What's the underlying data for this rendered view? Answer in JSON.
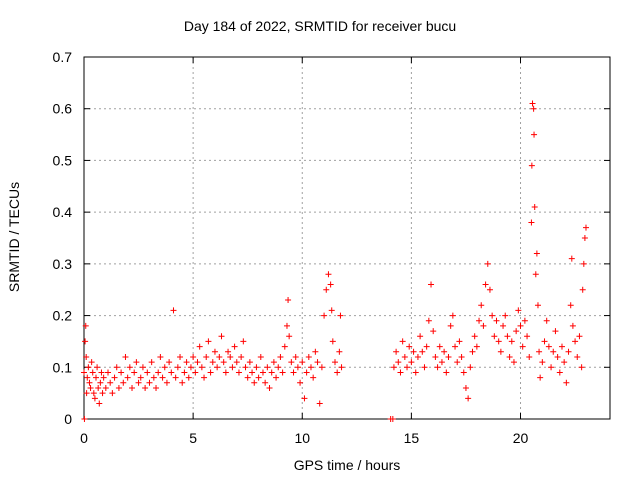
{
  "chart_data": {
    "type": "scatter",
    "title": "Day 184 of 2022, SRMTID for receiver bucu",
    "xlabel": "GPS time / hours",
    "ylabel": "SRMTID / TECUs",
    "xlim": [
      0,
      24.1
    ],
    "ylim": [
      0,
      0.7
    ],
    "xticks": [
      0,
      5,
      10,
      15,
      20
    ],
    "xtick_labels": [
      "0",
      "5",
      "10",
      "15",
      "20"
    ],
    "yticks": [
      0,
      0.1,
      0.2,
      0.3,
      0.4,
      0.5,
      0.6,
      0.7
    ],
    "ytick_labels": [
      "0",
      "0.1",
      "0.2",
      "0.3",
      "0.4",
      "0.5",
      "0.6",
      "0.7"
    ],
    "grid": true,
    "marker": "+",
    "color": "#ff0000",
    "series": [
      {
        "name": "SRMTID",
        "points": [
          [
            0.0,
            0.09
          ],
          [
            0.02,
            0.0
          ],
          [
            0.05,
            0.15
          ],
          [
            0.08,
            0.18
          ],
          [
            0.1,
            0.12
          ],
          [
            0.12,
            0.05
          ],
          [
            0.15,
            0.08
          ],
          [
            0.2,
            0.1
          ],
          [
            0.25,
            0.07
          ],
          [
            0.3,
            0.06
          ],
          [
            0.35,
            0.11
          ],
          [
            0.4,
            0.09
          ],
          [
            0.45,
            0.05
          ],
          [
            0.5,
            0.04
          ],
          [
            0.55,
            0.08
          ],
          [
            0.6,
            0.1
          ],
          [
            0.65,
            0.06
          ],
          [
            0.7,
            0.03
          ],
          [
            0.75,
            0.07
          ],
          [
            0.8,
            0.09
          ],
          [
            0.85,
            0.05
          ],
          [
            0.9,
            0.08
          ],
          [
            1.0,
            0.06
          ],
          [
            1.1,
            0.09
          ],
          [
            1.2,
            0.07
          ],
          [
            1.3,
            0.05
          ],
          [
            1.4,
            0.08
          ],
          [
            1.5,
            0.1
          ],
          [
            1.6,
            0.06
          ],
          [
            1.7,
            0.09
          ],
          [
            1.8,
            0.07
          ],
          [
            1.9,
            0.12
          ],
          [
            2.0,
            0.08
          ],
          [
            2.1,
            0.1
          ],
          [
            2.2,
            0.06
          ],
          [
            2.3,
            0.09
          ],
          [
            2.4,
            0.11
          ],
          [
            2.5,
            0.07
          ],
          [
            2.6,
            0.08
          ],
          [
            2.7,
            0.1
          ],
          [
            2.8,
            0.06
          ],
          [
            2.9,
            0.09
          ],
          [
            3.0,
            0.07
          ],
          [
            3.1,
            0.11
          ],
          [
            3.2,
            0.08
          ],
          [
            3.3,
            0.06
          ],
          [
            3.4,
            0.09
          ],
          [
            3.5,
            0.12
          ],
          [
            3.6,
            0.08
          ],
          [
            3.7,
            0.1
          ],
          [
            3.8,
            0.07
          ],
          [
            3.9,
            0.11
          ],
          [
            4.0,
            0.09
          ],
          [
            4.1,
            0.21
          ],
          [
            4.2,
            0.08
          ],
          [
            4.3,
            0.1
          ],
          [
            4.4,
            0.12
          ],
          [
            4.5,
            0.07
          ],
          [
            4.6,
            0.09
          ],
          [
            4.7,
            0.11
          ],
          [
            4.8,
            0.08
          ],
          [
            4.9,
            0.1
          ],
          [
            5.0,
            0.12
          ],
          [
            5.1,
            0.09
          ],
          [
            5.2,
            0.11
          ],
          [
            5.3,
            0.14
          ],
          [
            5.4,
            0.1
          ],
          [
            5.5,
            0.08
          ],
          [
            5.6,
            0.12
          ],
          [
            5.7,
            0.15
          ],
          [
            5.8,
            0.09
          ],
          [
            5.9,
            0.11
          ],
          [
            6.0,
            0.13
          ],
          [
            6.1,
            0.1
          ],
          [
            6.2,
            0.12
          ],
          [
            6.3,
            0.16
          ],
          [
            6.4,
            0.11
          ],
          [
            6.5,
            0.09
          ],
          [
            6.6,
            0.13
          ],
          [
            6.7,
            0.12
          ],
          [
            6.8,
            0.1
          ],
          [
            6.9,
            0.14
          ],
          [
            7.0,
            0.11
          ],
          [
            7.1,
            0.09
          ],
          [
            7.2,
            0.12
          ],
          [
            7.3,
            0.15
          ],
          [
            7.4,
            0.1
          ],
          [
            7.5,
            0.08
          ],
          [
            7.6,
            0.11
          ],
          [
            7.7,
            0.09
          ],
          [
            7.8,
            0.07
          ],
          [
            7.9,
            0.1
          ],
          [
            8.0,
            0.08
          ],
          [
            8.1,
            0.12
          ],
          [
            8.2,
            0.09
          ],
          [
            8.3,
            0.07
          ],
          [
            8.4,
            0.1
          ],
          [
            8.5,
            0.06
          ],
          [
            8.6,
            0.09
          ],
          [
            8.7,
            0.11
          ],
          [
            8.8,
            0.08
          ],
          [
            8.9,
            0.1
          ],
          [
            9.0,
            0.12
          ],
          [
            9.1,
            0.09
          ],
          [
            9.2,
            0.14
          ],
          [
            9.3,
            0.18
          ],
          [
            9.35,
            0.23
          ],
          [
            9.4,
            0.16
          ],
          [
            9.5,
            0.11
          ],
          [
            9.6,
            0.09
          ],
          [
            9.7,
            0.12
          ],
          [
            9.8,
            0.1
          ],
          [
            9.9,
            0.07
          ],
          [
            10.0,
            0.11
          ],
          [
            10.1,
            0.04
          ],
          [
            10.2,
            0.09
          ],
          [
            10.3,
            0.12
          ],
          [
            10.4,
            0.1
          ],
          [
            10.5,
            0.08
          ],
          [
            10.6,
            0.13
          ],
          [
            10.7,
            0.11
          ],
          [
            10.8,
            0.03
          ],
          [
            10.9,
            0.1
          ],
          [
            11.0,
            0.2
          ],
          [
            11.1,
            0.25
          ],
          [
            11.2,
            0.28
          ],
          [
            11.3,
            0.26
          ],
          [
            11.35,
            0.21
          ],
          [
            11.4,
            0.15
          ],
          [
            11.5,
            0.11
          ],
          [
            11.6,
            0.09
          ],
          [
            11.7,
            0.13
          ],
          [
            11.75,
            0.2
          ],
          [
            11.8,
            0.1
          ],
          [
            14.05,
            0.0
          ],
          [
            14.15,
            0.0
          ],
          [
            14.2,
            0.1
          ],
          [
            14.3,
            0.13
          ],
          [
            14.4,
            0.11
          ],
          [
            14.5,
            0.09
          ],
          [
            14.6,
            0.15
          ],
          [
            14.7,
            0.12
          ],
          [
            14.8,
            0.1
          ],
          [
            14.9,
            0.14
          ],
          [
            15.0,
            0.11
          ],
          [
            15.1,
            0.13
          ],
          [
            15.2,
            0.09
          ],
          [
            15.3,
            0.12
          ],
          [
            15.4,
            0.16
          ],
          [
            15.5,
            0.13
          ],
          [
            15.6,
            0.1
          ],
          [
            15.7,
            0.14
          ],
          [
            15.8,
            0.19
          ],
          [
            15.9,
            0.26
          ],
          [
            16.0,
            0.17
          ],
          [
            16.1,
            0.12
          ],
          [
            16.2,
            0.1
          ],
          [
            16.3,
            0.14
          ],
          [
            16.4,
            0.11
          ],
          [
            16.5,
            0.13
          ],
          [
            16.6,
            0.09
          ],
          [
            16.7,
            0.12
          ],
          [
            16.8,
            0.18
          ],
          [
            16.9,
            0.2
          ],
          [
            17.0,
            0.14
          ],
          [
            17.1,
            0.11
          ],
          [
            17.2,
            0.15
          ],
          [
            17.3,
            0.12
          ],
          [
            17.4,
            0.09
          ],
          [
            17.5,
            0.06
          ],
          [
            17.6,
            0.04
          ],
          [
            17.7,
            0.1
          ],
          [
            17.8,
            0.13
          ],
          [
            17.9,
            0.16
          ],
          [
            18.0,
            0.14
          ],
          [
            18.1,
            0.19
          ],
          [
            18.2,
            0.22
          ],
          [
            18.3,
            0.18
          ],
          [
            18.4,
            0.26
          ],
          [
            18.5,
            0.3
          ],
          [
            18.6,
            0.25
          ],
          [
            18.7,
            0.2
          ],
          [
            18.8,
            0.16
          ],
          [
            18.9,
            0.19
          ],
          [
            19.0,
            0.15
          ],
          [
            19.1,
            0.13
          ],
          [
            19.2,
            0.18
          ],
          [
            19.3,
            0.2
          ],
          [
            19.4,
            0.16
          ],
          [
            19.5,
            0.12
          ],
          [
            19.6,
            0.15
          ],
          [
            19.7,
            0.11
          ],
          [
            19.8,
            0.17
          ],
          [
            19.9,
            0.21
          ],
          [
            20.0,
            0.18
          ],
          [
            20.1,
            0.14
          ],
          [
            20.2,
            0.19
          ],
          [
            20.3,
            0.16
          ],
          [
            20.4,
            0.12
          ],
          [
            20.5,
            0.38
          ],
          [
            20.52,
            0.49
          ],
          [
            20.55,
            0.61
          ],
          [
            20.6,
            0.6
          ],
          [
            20.62,
            0.55
          ],
          [
            20.65,
            0.41
          ],
          [
            20.7,
            0.28
          ],
          [
            20.75,
            0.32
          ],
          [
            20.8,
            0.22
          ],
          [
            20.85,
            0.13
          ],
          [
            20.9,
            0.08
          ],
          [
            21.0,
            0.11
          ],
          [
            21.1,
            0.15
          ],
          [
            21.2,
            0.19
          ],
          [
            21.3,
            0.14
          ],
          [
            21.4,
            0.1
          ],
          [
            21.5,
            0.13
          ],
          [
            21.6,
            0.17
          ],
          [
            21.7,
            0.12
          ],
          [
            21.8,
            0.09
          ],
          [
            21.9,
            0.14
          ],
          [
            22.0,
            0.11
          ],
          [
            22.1,
            0.07
          ],
          [
            22.2,
            0.13
          ],
          [
            22.3,
            0.22
          ],
          [
            22.35,
            0.31
          ],
          [
            22.4,
            0.18
          ],
          [
            22.5,
            0.15
          ],
          [
            22.6,
            0.12
          ],
          [
            22.7,
            0.16
          ],
          [
            22.8,
            0.1
          ],
          [
            22.85,
            0.25
          ],
          [
            22.9,
            0.3
          ],
          [
            22.95,
            0.35
          ],
          [
            23.0,
            0.37
          ]
        ]
      }
    ]
  }
}
